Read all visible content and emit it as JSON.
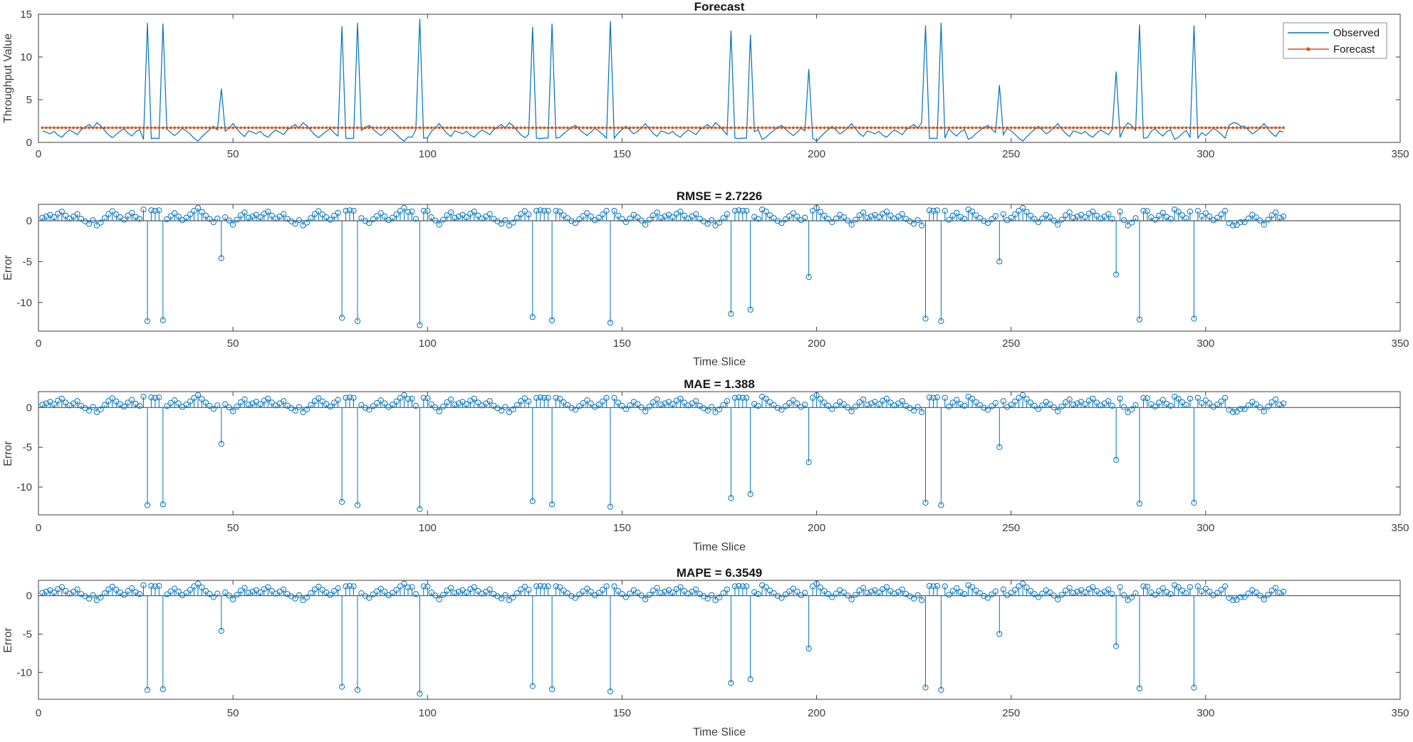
{
  "figure": {
    "background": "#ffffff",
    "axis_color": "#3f3f3f",
    "tick_label_color": "#3c3c3c",
    "stem_baseline_color": "#555555"
  },
  "chart_data": [
    {
      "type": "line",
      "title": "Forecast",
      "ylabel": "Throughput Value",
      "xlim": [
        0,
        350
      ],
      "ylim": [
        0,
        15
      ],
      "xticks": [
        0,
        50,
        100,
        150,
        200,
        250,
        300,
        350
      ],
      "yticks": [
        0,
        5,
        10,
        15
      ],
      "n_points": 320,
      "legend": {
        "position": "northeast",
        "entries": [
          {
            "label": "Observed",
            "color": "#0072BD",
            "style": "solid-line"
          },
          {
            "label": "Forecast",
            "color": "#D95319",
            "style": "line-with-dot-markers"
          }
        ]
      },
      "observed": {
        "name": "Observed",
        "color": "#0072BD",
        "note": "series = baseline_tile repeated to n_points, then spikes and overrides applied at 1-based x indices",
        "baseline_tile": [
          1.35,
          1.2,
          1.0,
          1.3,
          0.85,
          0.6,
          1.1,
          1.45,
          1.2,
          0.9,
          1.5,
          1.8,
          2.1,
          1.65,
          2.3,
          1.95,
          1.4,
          0.9,
          0.55,
          0.95,
          1.3,
          1.6,
          1.1,
          0.75,
          1.25,
          1.5,
          0.35,
          0.6,
          1.05,
          1.4,
          1.75,
          2.0,
          1.55,
          1.15,
          0.8,
          1.2,
          1.65,
          1.35,
          0.95,
          0.5,
          0.15,
          0.65,
          1.1,
          1.5,
          1.9,
          1.45,
          1.0,
          1.3,
          1.7,
          2.2,
          1.6,
          1.05,
          0.7
        ],
        "spikes": {
          "28": 14.0,
          "32": 13.9,
          "47": 6.3,
          "78": 13.6,
          "82": 14.0,
          "98": 14.5,
          "127": 13.5,
          "132": 13.9,
          "147": 14.2,
          "178": 13.1,
          "183": 12.6,
          "198": 8.6,
          "228": 13.7,
          "232": 14.0,
          "247": 6.7,
          "277": 8.3,
          "283": 13.8,
          "297": 13.7
        },
        "overrides": {
          "29": 0.45,
          "30": 0.5,
          "31": 0.45,
          "79": 0.5,
          "80": 0.45,
          "81": 0.5,
          "96": 0.6,
          "99": 0.5,
          "100": 0.55,
          "128": 0.5,
          "129": 0.45,
          "130": 0.5,
          "131": 0.5,
          "133": 0.5,
          "134": 0.6,
          "148": 0.5,
          "179": 0.5,
          "180": 0.45,
          "181": 0.5,
          "182": 0.5,
          "199": 0.5,
          "229": 0.45,
          "230": 0.5,
          "231": 0.45,
          "233": 0.5,
          "248": 0.9,
          "278": 0.6,
          "284": 0.5,
          "285": 0.55,
          "296": 0.6,
          "298": 0.5,
          "306": 2.0,
          "307": 2.3,
          "308": 2.25,
          "309": 1.9
        }
      },
      "forecast": {
        "name": "Forecast",
        "color": "#D95319",
        "constant_value": 1.72,
        "marker": "dot-every-point"
      }
    },
    {
      "type": "stem",
      "title": "RMSE = 2.7226",
      "metric": "RMSE",
      "value": 2.7226,
      "xlabel": "Time Slice",
      "ylabel": "Error",
      "xlim": [
        0,
        350
      ],
      "ylim": [
        -13.5,
        2
      ],
      "xticks": [
        0,
        50,
        100,
        150,
        200,
        250,
        300,
        350
      ],
      "yticks": [
        -10,
        -5,
        0
      ],
      "color": "#0072BD",
      "error_rule": "error = forecast_constant - observed"
    },
    {
      "type": "stem",
      "title": "MAE = 1.388",
      "metric": "MAE",
      "value": 1.388,
      "xlabel": "Time Slice",
      "ylabel": "Error",
      "xlim": [
        0,
        350
      ],
      "ylim": [
        -13.5,
        2
      ],
      "xticks": [
        0,
        50,
        100,
        150,
        200,
        250,
        300,
        350
      ],
      "yticks": [
        -10,
        -5,
        0
      ],
      "color": "#0072BD",
      "error_rule": "error = forecast_constant - observed"
    },
    {
      "type": "stem",
      "title": "MAPE = 6.3549",
      "metric": "MAPE",
      "value": 6.3549,
      "xlabel": "Time Slice",
      "ylabel": "Error",
      "xlim": [
        0,
        350
      ],
      "ylim": [
        -13.5,
        2
      ],
      "xticks": [
        0,
        50,
        100,
        150,
        200,
        250,
        300,
        350
      ],
      "yticks": [
        -10,
        -5,
        0
      ],
      "color": "#0072BD",
      "error_rule": "error = forecast_constant - observed"
    }
  ]
}
